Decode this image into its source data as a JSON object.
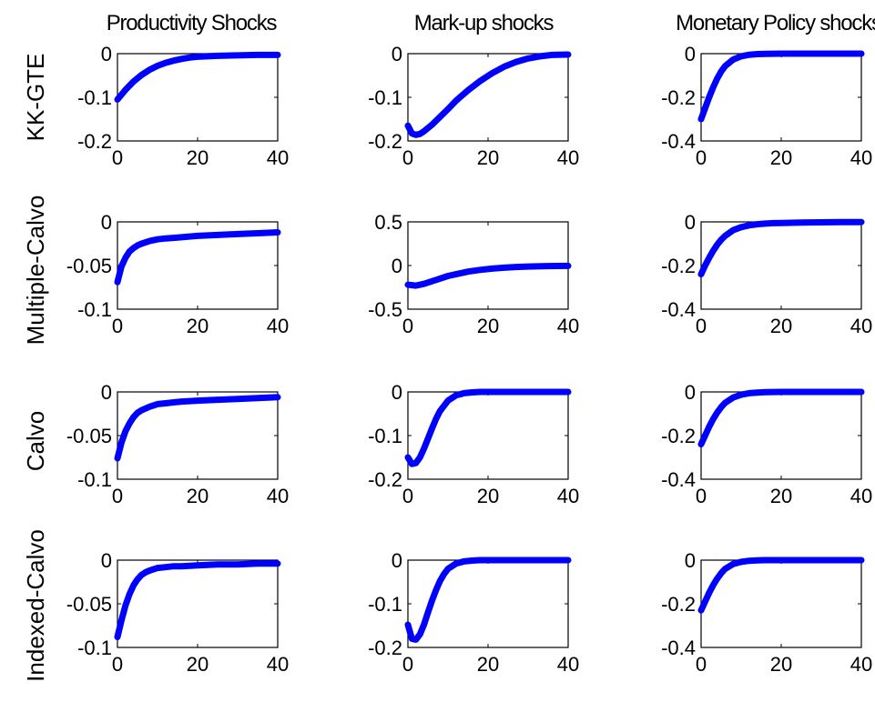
{
  "figure": {
    "column_titles": [
      "Productivity Shocks",
      "Mark-up shocks",
      "Monetary Policy shocks"
    ],
    "row_labels": [
      "KK-GTE",
      "Multiple-Calvo",
      "Calvo",
      "Indexed-Calvo"
    ],
    "line_color": "#0000ff"
  },
  "chart_data": [
    {
      "type": "line",
      "row": 0,
      "col": 0,
      "xlim": [
        0,
        40
      ],
      "ylim": [
        -0.2,
        0
      ],
      "xticks": [
        "0",
        "20",
        "40"
      ],
      "yticks": [
        "0",
        "-0.1",
        "-0.2"
      ],
      "x": [
        0,
        2,
        4,
        6,
        8,
        10,
        12,
        14,
        16,
        18,
        20,
        25,
        30,
        35,
        40
      ],
      "y": [
        -0.105,
        -0.083,
        -0.064,
        -0.049,
        -0.037,
        -0.028,
        -0.021,
        -0.016,
        -0.012,
        -0.009,
        -0.007,
        -0.005,
        -0.004,
        -0.003,
        -0.003
      ]
    },
    {
      "type": "line",
      "row": 0,
      "col": 1,
      "xlim": [
        0,
        40
      ],
      "ylim": [
        -0.2,
        0
      ],
      "xticks": [
        "0",
        "20",
        "40"
      ],
      "yticks": [
        "0",
        "-0.1",
        "-0.2"
      ],
      "x": [
        0,
        1,
        2,
        3,
        4,
        6,
        8,
        10,
        12,
        15,
        18,
        21,
        24,
        27,
        30,
        33,
        36,
        40
      ],
      "y": [
        -0.165,
        -0.183,
        -0.186,
        -0.184,
        -0.178,
        -0.163,
        -0.145,
        -0.127,
        -0.108,
        -0.084,
        -0.063,
        -0.045,
        -0.03,
        -0.019,
        -0.011,
        -0.006,
        -0.003,
        -0.002
      ]
    },
    {
      "type": "line",
      "row": 0,
      "col": 2,
      "xlim": [
        0,
        40
      ],
      "ylim": [
        -0.4,
        0
      ],
      "xticks": [
        "0",
        "20",
        "40"
      ],
      "yticks": [
        "0",
        "-0.2",
        "-0.4"
      ],
      "x": [
        0,
        1,
        2,
        3,
        4,
        5,
        6,
        8,
        10,
        12,
        14,
        16,
        20,
        25,
        30,
        40
      ],
      "y": [
        -0.3,
        -0.25,
        -0.2,
        -0.155,
        -0.115,
        -0.082,
        -0.057,
        -0.027,
        -0.012,
        -0.005,
        -0.002,
        -0.001,
        0,
        0,
        0,
        0
      ]
    },
    {
      "type": "line",
      "row": 1,
      "col": 0,
      "xlim": [
        0,
        40
      ],
      "ylim": [
        -0.1,
        0
      ],
      "xticks": [
        "0",
        "20",
        "40"
      ],
      "yticks": [
        "0",
        "-0.05",
        "-0.1"
      ],
      "x": [
        0,
        1,
        2,
        3,
        4,
        5,
        6,
        8,
        10,
        12,
        15,
        20,
        25,
        30,
        35,
        40
      ],
      "y": [
        -0.069,
        -0.051,
        -0.041,
        -0.034,
        -0.03,
        -0.027,
        -0.025,
        -0.022,
        -0.02,
        -0.019,
        -0.018,
        -0.016,
        -0.015,
        -0.014,
        -0.013,
        -0.012
      ]
    },
    {
      "type": "line",
      "row": 1,
      "col": 1,
      "xlim": [
        0,
        40
      ],
      "ylim": [
        -0.5,
        0.5
      ],
      "xticks": [
        "0",
        "20",
        "40"
      ],
      "yticks": [
        "0.5",
        "0",
        "-0.5"
      ],
      "x": [
        0,
        2,
        4,
        6,
        8,
        10,
        12,
        15,
        18,
        21,
        24,
        27,
        30,
        35,
        40
      ],
      "y": [
        -0.22,
        -0.23,
        -0.21,
        -0.18,
        -0.15,
        -0.12,
        -0.1,
        -0.07,
        -0.05,
        -0.035,
        -0.025,
        -0.017,
        -0.011,
        -0.006,
        -0.004
      ]
    },
    {
      "type": "line",
      "row": 1,
      "col": 2,
      "xlim": [
        0,
        40
      ],
      "ylim": [
        -0.4,
        0
      ],
      "xticks": [
        "0",
        "20",
        "40"
      ],
      "yticks": [
        "0",
        "-0.2",
        "-0.4"
      ],
      "x": [
        0,
        1,
        2,
        3,
        4,
        5,
        6,
        8,
        10,
        12,
        14,
        16,
        18,
        20,
        25,
        30,
        35,
        40
      ],
      "y": [
        -0.24,
        -0.2,
        -0.165,
        -0.133,
        -0.105,
        -0.082,
        -0.064,
        -0.038,
        -0.024,
        -0.016,
        -0.011,
        -0.008,
        -0.006,
        -0.005,
        -0.003,
        -0.002,
        -0.001,
        -0.001
      ]
    },
    {
      "type": "line",
      "row": 2,
      "col": 0,
      "xlim": [
        0,
        40
      ],
      "ylim": [
        -0.1,
        0
      ],
      "xticks": [
        "0",
        "20",
        "40"
      ],
      "yticks": [
        "0",
        "-0.05",
        "-0.1"
      ],
      "x": [
        0,
        1,
        2,
        3,
        4,
        5,
        6,
        8,
        10,
        12,
        14,
        16,
        20,
        25,
        30,
        35,
        40
      ],
      "y": [
        -0.076,
        -0.058,
        -0.045,
        -0.036,
        -0.029,
        -0.024,
        -0.021,
        -0.017,
        -0.014,
        -0.013,
        -0.012,
        -0.011,
        -0.01,
        -0.009,
        -0.008,
        -0.007,
        -0.006
      ]
    },
    {
      "type": "line",
      "row": 2,
      "col": 1,
      "xlim": [
        0,
        40
      ],
      "ylim": [
        -0.2,
        0
      ],
      "xticks": [
        "0",
        "20",
        "40"
      ],
      "yticks": [
        "0",
        "-0.1",
        "-0.2"
      ],
      "x": [
        0,
        1,
        2,
        3,
        4,
        5,
        6,
        7,
        8,
        10,
        12,
        14,
        16,
        18,
        20,
        25,
        30,
        40
      ],
      "y": [
        -0.15,
        -0.165,
        -0.163,
        -0.15,
        -0.13,
        -0.107,
        -0.084,
        -0.062,
        -0.044,
        -0.02,
        -0.008,
        -0.003,
        -0.001,
        0,
        0,
        0,
        0,
        0
      ]
    },
    {
      "type": "line",
      "row": 2,
      "col": 2,
      "xlim": [
        0,
        40
      ],
      "ylim": [
        -0.4,
        0
      ],
      "xticks": [
        "0",
        "20",
        "40"
      ],
      "yticks": [
        "0",
        "-0.2",
        "-0.4"
      ],
      "x": [
        0,
        1,
        2,
        3,
        4,
        5,
        6,
        8,
        10,
        12,
        14,
        16,
        20,
        25,
        30,
        40
      ],
      "y": [
        -0.24,
        -0.2,
        -0.16,
        -0.125,
        -0.095,
        -0.07,
        -0.05,
        -0.026,
        -0.013,
        -0.006,
        -0.003,
        -0.001,
        0,
        0,
        0,
        0
      ]
    },
    {
      "type": "line",
      "row": 3,
      "col": 0,
      "xlim": [
        0,
        40
      ],
      "ylim": [
        -0.1,
        0
      ],
      "xticks": [
        "0",
        "20",
        "40"
      ],
      "yticks": [
        "0",
        "-0.05",
        "-0.1"
      ],
      "x": [
        0,
        1,
        2,
        3,
        4,
        5,
        6,
        7,
        8,
        10,
        12,
        14,
        16,
        20,
        25,
        30,
        35,
        40
      ],
      "y": [
        -0.088,
        -0.069,
        -0.052,
        -0.039,
        -0.029,
        -0.022,
        -0.017,
        -0.014,
        -0.012,
        -0.009,
        -0.008,
        -0.007,
        -0.007,
        -0.006,
        -0.005,
        -0.005,
        -0.004,
        -0.004
      ]
    },
    {
      "type": "line",
      "row": 3,
      "col": 1,
      "xlim": [
        0,
        40
      ],
      "ylim": [
        -0.2,
        0
      ],
      "xticks": [
        "0",
        "20",
        "40"
      ],
      "yticks": [
        "0",
        "-0.1",
        "-0.2"
      ],
      "x": [
        0,
        1,
        2,
        3,
        4,
        5,
        6,
        7,
        8,
        9,
        10,
        12,
        14,
        16,
        18,
        20,
        25,
        30,
        40
      ],
      "y": [
        -0.148,
        -0.18,
        -0.182,
        -0.17,
        -0.148,
        -0.12,
        -0.093,
        -0.069,
        -0.048,
        -0.032,
        -0.02,
        -0.008,
        -0.003,
        -0.001,
        0,
        0,
        0,
        0,
        0
      ]
    },
    {
      "type": "line",
      "row": 3,
      "col": 2,
      "xlim": [
        0,
        40
      ],
      "ylim": [
        -0.4,
        0
      ],
      "xticks": [
        "0",
        "20",
        "40"
      ],
      "yticks": [
        "0",
        "-0.2",
        "-0.4"
      ],
      "x": [
        0,
        1,
        2,
        3,
        4,
        5,
        6,
        8,
        10,
        12,
        14,
        16,
        20,
        25,
        30,
        40
      ],
      "y": [
        -0.23,
        -0.19,
        -0.15,
        -0.115,
        -0.085,
        -0.06,
        -0.04,
        -0.018,
        -0.008,
        -0.003,
        -0.001,
        0,
        0,
        0,
        0,
        0
      ]
    }
  ]
}
